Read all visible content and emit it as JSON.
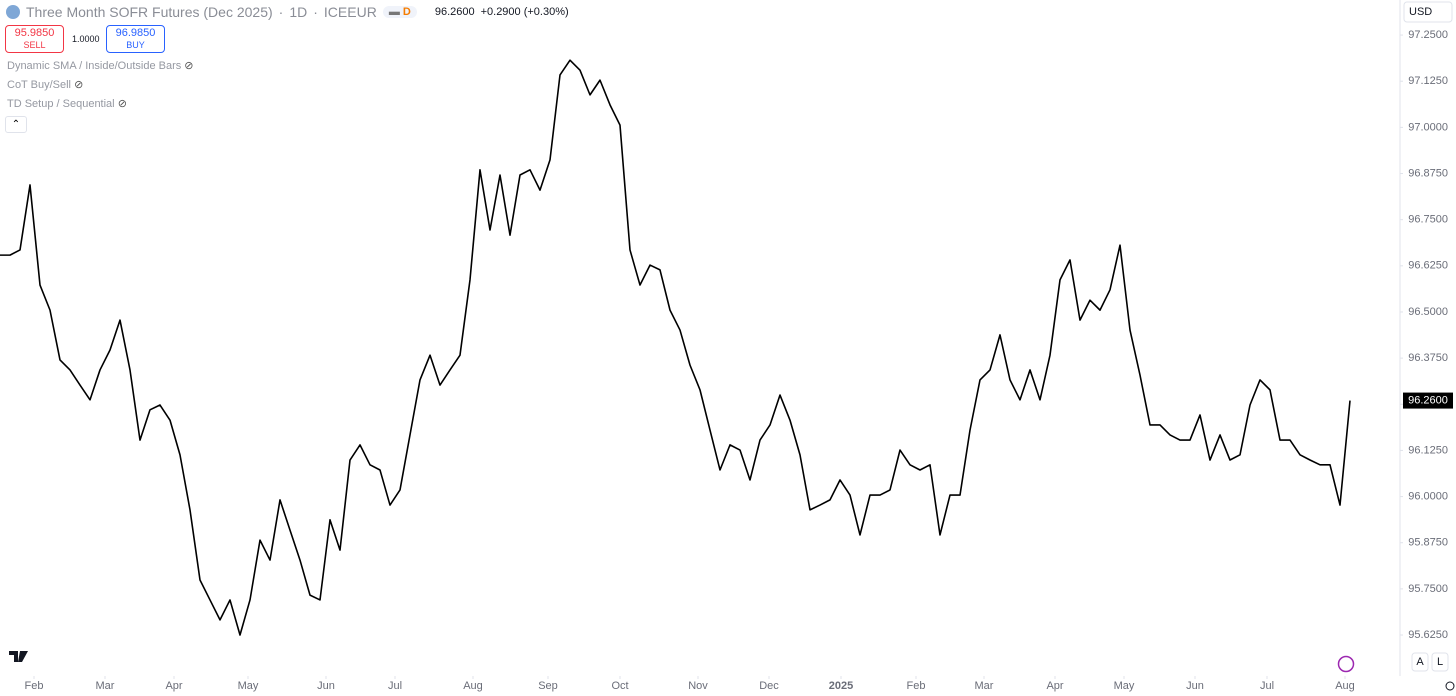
{
  "header": {
    "symbol": "Three Month SOFR Futures (Dec 2025)",
    "interval": "1D",
    "exchange": "ICEEUR",
    "badge": "D",
    "last_price": "96.2600",
    "change": "+0.2900 (+0.30%)",
    "sell_price": "95.9850",
    "sell": "SELL",
    "quantity": "1.0000",
    "buy_price": "96.9850",
    "buy": "BUY",
    "currency": "USD"
  },
  "indicators": [
    "Dynamic SMA / Inside/Outside Bars",
    "CoT Buy/Sell",
    "TD Setup / Sequential"
  ],
  "scale_buttons": [
    "A",
    "L"
  ],
  "chart_data": {
    "type": "line",
    "color": "#000000",
    "values": [
      96.654,
      96.654,
      96.668,
      96.844,
      96.573,
      96.505,
      96.37,
      96.343,
      96.302,
      96.262,
      96.343,
      96.397,
      96.478,
      96.343,
      96.153,
      96.235,
      96.248,
      96.207,
      96.113,
      95.964,
      95.774,
      95.72,
      95.666,
      95.72,
      95.625,
      95.72,
      95.882,
      95.828,
      95.991,
      95.909,
      95.828,
      95.733,
      95.72,
      95.937,
      95.855,
      96.099,
      96.14,
      96.086,
      96.072,
      95.977,
      96.018,
      96.167,
      96.316,
      96.383,
      96.302,
      96.343,
      96.383,
      96.587,
      96.885,
      96.722,
      96.871,
      96.708,
      96.871,
      96.885,
      96.83,
      96.912,
      97.142,
      97.182,
      97.155,
      97.088,
      97.128,
      97.061,
      97.006,
      96.668,
      96.573,
      96.627,
      96.614,
      96.505,
      96.451,
      96.356,
      96.289,
      96.18,
      96.072,
      96.14,
      96.126,
      96.045,
      96.153,
      96.194,
      96.275,
      96.207,
      96.113,
      95.964,
      95.977,
      95.991,
      96.045,
      96.004,
      95.896,
      96.004,
      96.004,
      96.018,
      96.126,
      96.086,
      96.072,
      96.086,
      95.896,
      96.004,
      96.004,
      96.18,
      96.316,
      96.343,
      96.438,
      96.316,
      96.262,
      96.343,
      96.262,
      96.383,
      96.587,
      96.641,
      96.478,
      96.532,
      96.505,
      96.56,
      96.681,
      96.451,
      96.329,
      96.194,
      96.194,
      96.167,
      96.153,
      96.153,
      96.221,
      96.099,
      96.167,
      96.099,
      96.113,
      96.248,
      96.316,
      96.289,
      96.153,
      96.153,
      96.113,
      96.099,
      96.086,
      96.086,
      95.977,
      96.26
    ],
    "xlim": [
      0,
      140
    ],
    "xticks": [
      {
        "value": 3.4,
        "label": "Feb"
      },
      {
        "value": 10.5,
        "label": "Mar"
      },
      {
        "value": 17.4,
        "label": "Apr"
      },
      {
        "value": 24.8,
        "label": "May"
      },
      {
        "value": 32.6,
        "label": "Jun"
      },
      {
        "value": 39.5,
        "label": "Jul"
      },
      {
        "value": 47.3,
        "label": "Aug"
      },
      {
        "value": 54.8,
        "label": "Sep"
      },
      {
        "value": 62.0,
        "label": "Oct"
      },
      {
        "value": 69.8,
        "label": "Nov"
      },
      {
        "value": 76.9,
        "label": "Dec"
      },
      {
        "value": 84.1,
        "label": "2025"
      },
      {
        "value": 91.6,
        "label": "Feb"
      },
      {
        "value": 98.4,
        "label": "Mar"
      },
      {
        "value": 105.5,
        "label": "Apr"
      },
      {
        "value": 112.4,
        "label": "May"
      },
      {
        "value": 119.5,
        "label": "Jun"
      },
      {
        "value": 126.7,
        "label": "Jul"
      },
      {
        "value": 134.5,
        "label": "Aug"
      }
    ],
    "ylim": [
      95.514,
      97.345
    ],
    "yticks": [
      {
        "value": 97.25,
        "label": "97.2500"
      },
      {
        "value": 97.125,
        "label": "97.1250"
      },
      {
        "value": 97.0,
        "label": "97.0000"
      },
      {
        "value": 96.875,
        "label": "96.8750"
      },
      {
        "value": 96.75,
        "label": "96.7500"
      },
      {
        "value": 96.625,
        "label": "96.6250"
      },
      {
        "value": 96.5,
        "label": "96.5000"
      },
      {
        "value": 96.375,
        "label": "96.3750"
      },
      {
        "value": 96.25,
        "label": "96.2500"
      },
      {
        "value": 96.125,
        "label": "96.1250"
      },
      {
        "value": 96.0,
        "label": "96.0000"
      },
      {
        "value": 95.875,
        "label": "95.8750"
      },
      {
        "value": 95.75,
        "label": "95.7500"
      },
      {
        "value": 95.625,
        "label": "95.6250"
      }
    ]
  }
}
